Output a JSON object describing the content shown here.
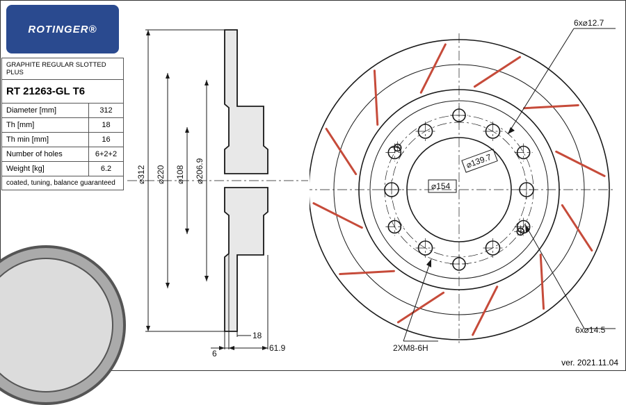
{
  "brand": "ROTINGER®",
  "product_line": "GRAPHITE REGULAR SLOTTED PLUS",
  "part_number": "RT 21263-GL T6",
  "specs": [
    {
      "label": "Diameter [mm]",
      "value": "312"
    },
    {
      "label": "Th [mm]",
      "value": "18"
    },
    {
      "label": "Th min [mm]",
      "value": "16"
    },
    {
      "label": "Number of holes",
      "value": "6+2+2"
    },
    {
      "label": "Weight [kg]",
      "value": "6.2"
    }
  ],
  "footer_note": "coated, tuning, balance guaranteed",
  "version": "ver. 2021.11.04",
  "section_dims": {
    "d_outer": "⌀312",
    "d_220": "⌀220",
    "d_108": "⌀108",
    "d_2069": "⌀206.9",
    "th_18": "18",
    "off_6": "6",
    "off_619": "61.9"
  },
  "front_dims": {
    "bolt_small": "6x⌀12.7",
    "bolt_large": "6x⌀14.5",
    "thread": "2XM8-6H",
    "pcd_154": "⌀154",
    "pcd_1397": "⌀139.7"
  },
  "geometry": {
    "outer_d": 312,
    "slot_count": 12,
    "bolt_count": 6,
    "colors": {
      "line": "#1a1a1a",
      "slot": "#c64b3a",
      "hatch": "#e8e8e8",
      "logo_bg": "#2a4a8f"
    }
  }
}
